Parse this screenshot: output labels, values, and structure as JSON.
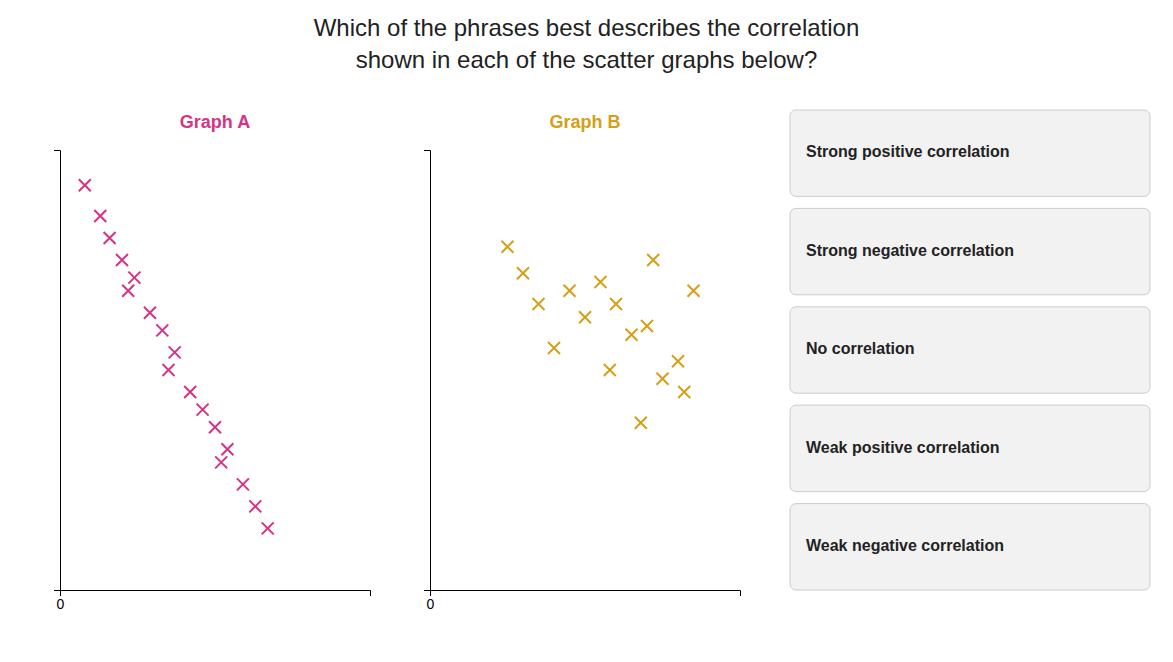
{
  "title": "Which of the phrases best describes the correlation",
  "subtitle": "shown in each of the scatter graphs below?",
  "annotations": [
    "Strong positive correlation",
    "Strong negative correlation",
    "No correlation",
    "Weak positive correlation",
    "Weak negative correlation"
  ],
  "chart_data": [
    {
      "type": "scatter",
      "title": "Graph A",
      "marker": "x",
      "color": "#D63384",
      "x": [
        0.8,
        1.3,
        1.6,
        2.0,
        2.4,
        2.2,
        2.9,
        3.3,
        3.7,
        3.5,
        4.2,
        4.6,
        5.0,
        5.4,
        5.2,
        5.9,
        6.3,
        6.7
      ],
      "values": [
        9.2,
        8.5,
        8.0,
        7.5,
        7.1,
        6.8,
        6.3,
        5.9,
        5.4,
        5.0,
        4.5,
        4.1,
        3.7,
        3.2,
        2.9,
        2.4,
        1.9,
        1.4
      ],
      "xlim": [
        0,
        10
      ],
      "ylim": [
        0,
        10
      ],
      "xticks": [
        0
      ],
      "yticks": [],
      "tick_labels": "x",
      "grid": false
    },
    {
      "type": "scatter",
      "title": "Graph B",
      "marker": "x",
      "color": "#D4A017",
      "x": [
        2.5,
        3.5,
        3.0,
        4.5,
        4.0,
        5.5,
        5.0,
        6.0,
        5.8,
        6.5,
        7.0,
        7.5,
        7.2,
        8.0,
        8.5,
        8.2,
        6.8
      ],
      "values": [
        7.8,
        6.5,
        7.2,
        6.8,
        5.5,
        7.0,
        6.2,
        6.5,
        5.0,
        5.8,
        6.0,
        4.8,
        7.5,
        5.2,
        6.8,
        4.5,
        3.8
      ],
      "xlim": [
        0,
        10
      ],
      "ylim": [
        0,
        10
      ],
      "xticks": [
        0
      ],
      "yticks": [],
      "tick_labels": "x",
      "grid": false
    }
  ]
}
